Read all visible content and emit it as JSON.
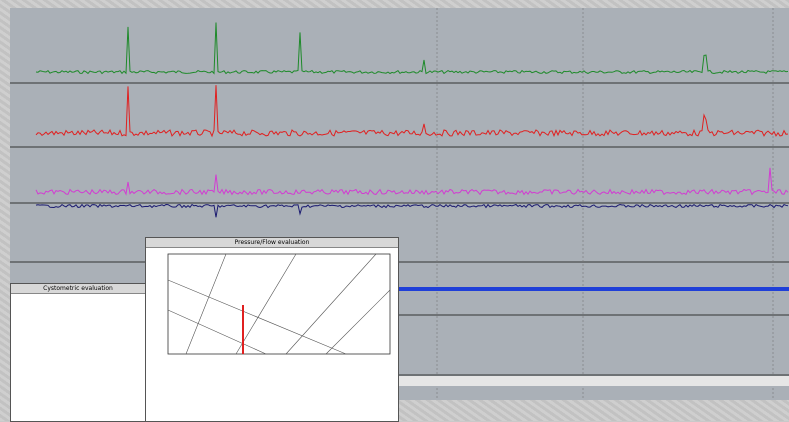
{
  "windows": {
    "pressure_flow": {
      "title": "Pressure/Flow evaluation"
    },
    "cystometric": {
      "title": "Cystometric evaluation"
    }
  }
}
